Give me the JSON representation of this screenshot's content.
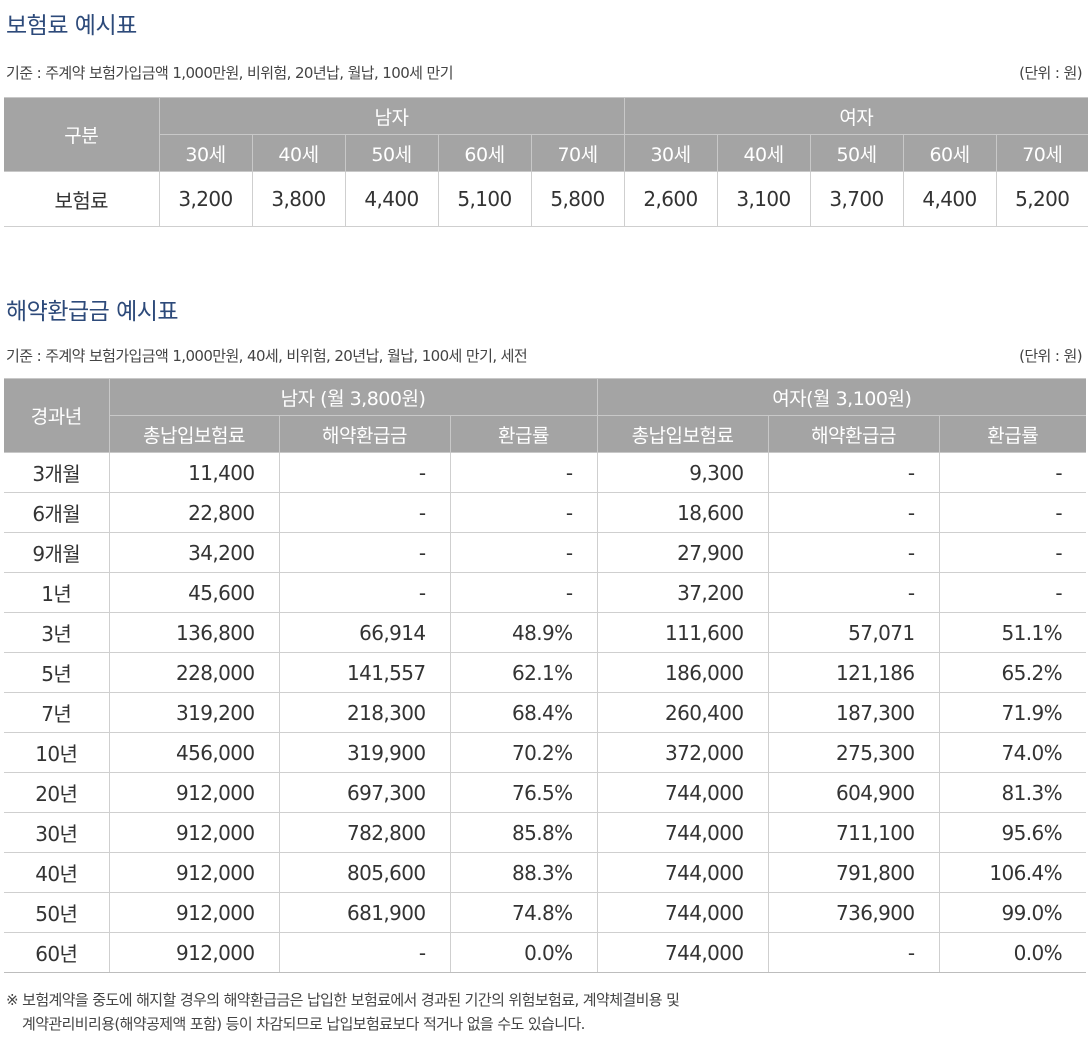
{
  "premium_section": {
    "title": "보험료 예시표",
    "basis": "기준 : 주계약 보험가입금액 1,000만원, 비위험, 20년납, 월납, 100세 만기",
    "unit": "(단위 : 원)",
    "category_header": "구분",
    "male_header": "남자",
    "female_header": "여자",
    "ages": [
      "30세",
      "40세",
      "50세",
      "60세",
      "70세"
    ],
    "row_label": "보험료",
    "male_values": [
      "3,200",
      "3,800",
      "4,400",
      "5,100",
      "5,800"
    ],
    "female_values": [
      "2,600",
      "3,100",
      "3,700",
      "4,400",
      "5,200"
    ]
  },
  "refund_section": {
    "title": "해약환급금 예시표",
    "basis": "기준 : 주계약 보험가입금액 1,000만원, 40세, 비위험, 20년납, 월납, 100세 만기, 세전",
    "unit": "(단위 : 원)",
    "period_header": "경과년",
    "male_header": "남자 (월 3,800원)",
    "female_header": "여자(월 3,100원)",
    "sub_headers": [
      "총납입보험료",
      "해약환급금",
      "환급률"
    ],
    "rows": [
      {
        "period": "3개월",
        "m_paid": "11,400",
        "m_refund": "-",
        "m_rate": "-",
        "f_paid": "9,300",
        "f_refund": "-",
        "f_rate": "-"
      },
      {
        "period": "6개월",
        "m_paid": "22,800",
        "m_refund": "-",
        "m_rate": "-",
        "f_paid": "18,600",
        "f_refund": "-",
        "f_rate": "-"
      },
      {
        "period": "9개월",
        "m_paid": "34,200",
        "m_refund": "-",
        "m_rate": "-",
        "f_paid": "27,900",
        "f_refund": "-",
        "f_rate": "-"
      },
      {
        "period": "1년",
        "m_paid": "45,600",
        "m_refund": "-",
        "m_rate": "-",
        "f_paid": "37,200",
        "f_refund": "-",
        "f_rate": "-"
      },
      {
        "period": "3년",
        "m_paid": "136,800",
        "m_refund": "66,914",
        "m_rate": "48.9%",
        "f_paid": "111,600",
        "f_refund": "57,071",
        "f_rate": "51.1%"
      },
      {
        "period": "5년",
        "m_paid": "228,000",
        "m_refund": "141,557",
        "m_rate": "62.1%",
        "f_paid": "186,000",
        "f_refund": "121,186",
        "f_rate": "65.2%"
      },
      {
        "period": "7년",
        "m_paid": "319,200",
        "m_refund": "218,300",
        "m_rate": "68.4%",
        "f_paid": "260,400",
        "f_refund": "187,300",
        "f_rate": "71.9%"
      },
      {
        "period": "10년",
        "m_paid": "456,000",
        "m_refund": "319,900",
        "m_rate": "70.2%",
        "f_paid": "372,000",
        "f_refund": "275,300",
        "f_rate": "74.0%"
      },
      {
        "period": "20년",
        "m_paid": "912,000",
        "m_refund": "697,300",
        "m_rate": "76.5%",
        "f_paid": "744,000",
        "f_refund": "604,900",
        "f_rate": "81.3%"
      },
      {
        "period": "30년",
        "m_paid": "912,000",
        "m_refund": "782,800",
        "m_rate": "85.8%",
        "f_paid": "744,000",
        "f_refund": "711,100",
        "f_rate": "95.6%"
      },
      {
        "period": "40년",
        "m_paid": "912,000",
        "m_refund": "805,600",
        "m_rate": "88.3%",
        "f_paid": "744,000",
        "f_refund": "791,800",
        "f_rate": "106.4%"
      },
      {
        "period": "50년",
        "m_paid": "912,000",
        "m_refund": "681,900",
        "m_rate": "74.8%",
        "f_paid": "744,000",
        "f_refund": "736,900",
        "f_rate": "99.0%"
      },
      {
        "period": "60년",
        "m_paid": "912,000",
        "m_refund": "-",
        "m_rate": "0.0%",
        "f_paid": "744,000",
        "f_refund": "-",
        "f_rate": "0.0%"
      }
    ]
  },
  "footnote": {
    "line1": "※ 보험계약을 중도에 해지할 경우의 해약환급금은 납입한 보험료에서 경과된 기간의 위험보험료, 계약체결비용 및",
    "line2": "계약관리비리용(해약공제액 포함) 등이 차감되므로 납입보험료보다 적거나 없을 수도 있습니다."
  }
}
